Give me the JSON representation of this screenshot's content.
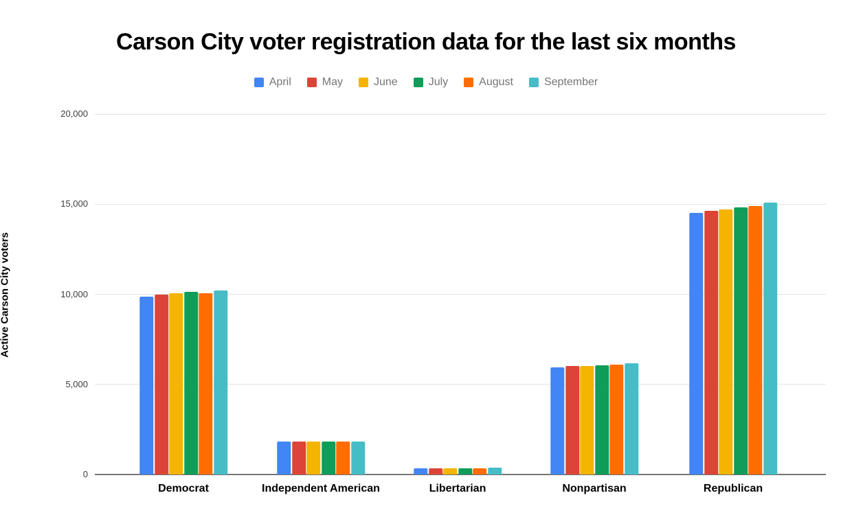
{
  "title": "Carson City voter registration data for the last six months",
  "background_color": "#ffffff",
  "legend": {
    "position": "top",
    "text_color": "#757575"
  },
  "axes": {
    "y_title": "Active Carson City voters",
    "y_tick_labels": [
      "0",
      "5,000",
      "10,000",
      "15,000",
      "20,000"
    ],
    "gridline_color": "#e3e3e3",
    "baseline_color": "#757575"
  },
  "chart_data": {
    "type": "bar",
    "title": "Carson City voter registration data for the last six months",
    "xlabel": "",
    "ylabel": "Active Carson City voters",
    "ylim": [
      0,
      20000
    ],
    "y_tick_step": 5000,
    "grid": true,
    "legend_position": "top",
    "categories": [
      "Democrat",
      "Independent American",
      "Libertarian",
      "Nonpartisan",
      "Republican"
    ],
    "series": [
      {
        "name": "April",
        "color": "#4285F4",
        "values": [
          9880,
          1815,
          340,
          5950,
          14500
        ]
      },
      {
        "name": "May",
        "color": "#DB4437",
        "values": [
          9990,
          1820,
          345,
          6010,
          14610
        ]
      },
      {
        "name": "June",
        "color": "#F4B400",
        "values": [
          10040,
          1835,
          345,
          6000,
          14700
        ]
      },
      {
        "name": "July",
        "color": "#0F9D58",
        "values": [
          10120,
          1840,
          350,
          6060,
          14830
        ]
      },
      {
        "name": "August",
        "color": "#FF6D00",
        "values": [
          10060,
          1840,
          350,
          6090,
          14890
        ]
      },
      {
        "name": "September",
        "color": "#46BDC6",
        "values": [
          10200,
          1820,
          365,
          6190,
          15080
        ]
      }
    ]
  }
}
